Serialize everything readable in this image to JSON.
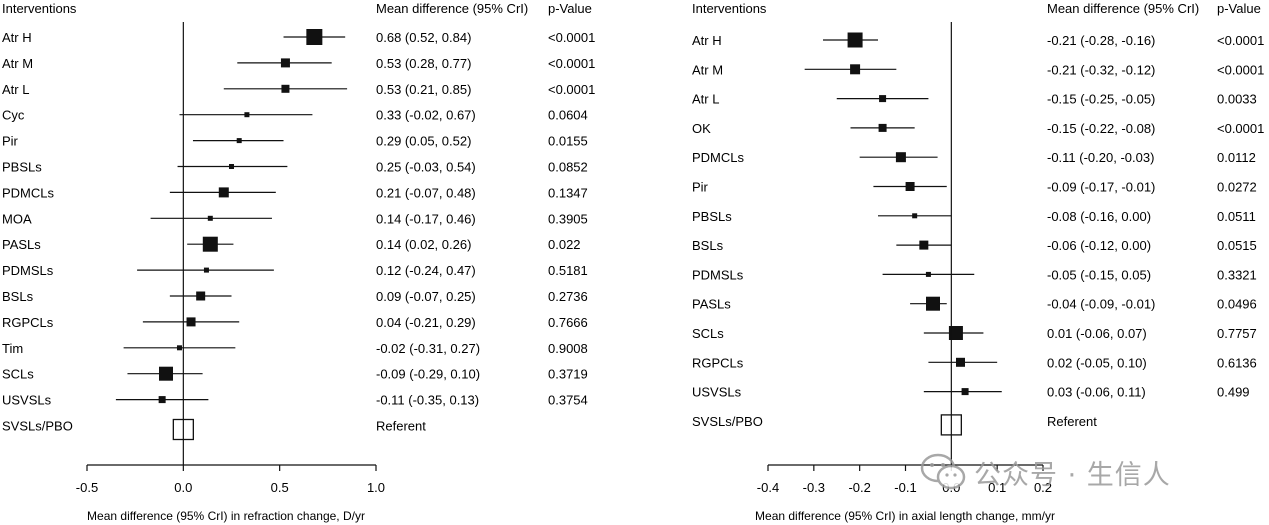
{
  "colors": {
    "marker": "#111111",
    "line": "#111111",
    "watermark": "#9a9a9a"
  },
  "chart_data": [
    {
      "type": "forest",
      "header_interventions": "Interventions",
      "header_estimate": "Mean difference (95% CrI)",
      "header_pvalue": "p-Value",
      "xlabel": "Mean difference (95% CrI) in refraction change, D/yr",
      "xlim": [
        -0.5,
        1.0
      ],
      "xticks": [
        -0.5,
        0.0,
        0.5,
        1.0
      ],
      "xtick_labels": [
        "-0.5",
        "0.0",
        "0.5",
        "1.0"
      ],
      "reference_value": 0,
      "rows": [
        {
          "label": "Atr H",
          "mean": 0.68,
          "low": 0.52,
          "high": 0.84,
          "ci_text": "0.68 (0.52, 0.84)",
          "p": "<0.0001",
          "marker_size": 16
        },
        {
          "label": "Atr M",
          "mean": 0.53,
          "low": 0.28,
          "high": 0.77,
          "ci_text": "0.53 (0.28, 0.77)",
          "p": "<0.0001",
          "marker_size": 9
        },
        {
          "label": "Atr L",
          "mean": 0.53,
          "low": 0.21,
          "high": 0.85,
          "ci_text": "0.53 (0.21, 0.85)",
          "p": "<0.0001",
          "marker_size": 8
        },
        {
          "label": "Cyc",
          "mean": 0.33,
          "low": -0.02,
          "high": 0.67,
          "ci_text": "0.33 (-0.02, 0.67)",
          "p": "0.0604",
          "marker_size": 5
        },
        {
          "label": "Pir",
          "mean": 0.29,
          "low": 0.05,
          "high": 0.52,
          "ci_text": "0.29 (0.05, 0.52)",
          "p": "0.0155",
          "marker_size": 5
        },
        {
          "label": "PBSLs",
          "mean": 0.25,
          "low": -0.03,
          "high": 0.54,
          "ci_text": "0.25 (-0.03, 0.54)",
          "p": "0.0852",
          "marker_size": 5
        },
        {
          "label": "PDMCLs",
          "mean": 0.21,
          "low": -0.07,
          "high": 0.48,
          "ci_text": "0.21 (-0.07, 0.48)",
          "p": "0.1347",
          "marker_size": 10
        },
        {
          "label": "MOA",
          "mean": 0.14,
          "low": -0.17,
          "high": 0.46,
          "ci_text": "0.14 (-0.17, 0.46)",
          "p": "0.3905",
          "marker_size": 5
        },
        {
          "label": "PASLs",
          "mean": 0.14,
          "low": 0.02,
          "high": 0.26,
          "ci_text": "0.14 (0.02, 0.26)",
          "p": "0.022",
          "marker_size": 15
        },
        {
          "label": "PDMSLs",
          "mean": 0.12,
          "low": -0.24,
          "high": 0.47,
          "ci_text": "0.12 (-0.24, 0.47)",
          "p": "0.5181",
          "marker_size": 5
        },
        {
          "label": "BSLs",
          "mean": 0.09,
          "low": -0.07,
          "high": 0.25,
          "ci_text": "0.09 (-0.07, 0.25)",
          "p": "0.2736",
          "marker_size": 9
        },
        {
          "label": "RGPCLs",
          "mean": 0.04,
          "low": -0.21,
          "high": 0.29,
          "ci_text": "0.04 (-0.21, 0.29)",
          "p": "0.7666",
          "marker_size": 9
        },
        {
          "label": "Tim",
          "mean": -0.02,
          "low": -0.31,
          "high": 0.27,
          "ci_text": "-0.02 (-0.31, 0.27)",
          "p": "0.9008",
          "marker_size": 5
        },
        {
          "label": "SCLs",
          "mean": -0.09,
          "low": -0.29,
          "high": 0.1,
          "ci_text": "-0.09 (-0.29, 0.10)",
          "p": "0.3719",
          "marker_size": 14
        },
        {
          "label": "USVSLs",
          "mean": -0.11,
          "low": -0.35,
          "high": 0.13,
          "ci_text": "-0.11 (-0.35, 0.13)",
          "p": "0.3754",
          "marker_size": 7
        },
        {
          "label": "SVSLs/PBO",
          "mean": 0.0,
          "low": null,
          "high": null,
          "ci_text": "Referent",
          "p": "",
          "marker_size": 20,
          "referent": true
        }
      ]
    },
    {
      "type": "forest",
      "header_interventions": "Interventions",
      "header_estimate": "Mean difference (95% CrI)",
      "header_pvalue": "p-Value",
      "xlabel": "Mean difference (95% CrI) in axial length change, mm/yr",
      "xlim": [
        -0.4,
        0.2
      ],
      "xticks": [
        -0.4,
        -0.3,
        -0.2,
        -0.1,
        0.0,
        0.1,
        0.2
      ],
      "xtick_labels": [
        "-0.4",
        "-0.3",
        "-0.2",
        "-0.1",
        "0.0",
        "0.1",
        "0.2"
      ],
      "reference_value": 0,
      "rows": [
        {
          "label": "Atr H",
          "mean": -0.21,
          "low": -0.28,
          "high": -0.16,
          "ci_text": "-0.21 (-0.28, -0.16)",
          "p": "<0.0001",
          "marker_size": 15
        },
        {
          "label": "Atr M",
          "mean": -0.21,
          "low": -0.32,
          "high": -0.12,
          "ci_text": "-0.21 (-0.32, -0.12)",
          "p": "<0.0001",
          "marker_size": 10
        },
        {
          "label": "Atr L",
          "mean": -0.15,
          "low": -0.25,
          "high": -0.05,
          "ci_text": "-0.15 (-0.25, -0.05)",
          "p": "0.0033",
          "marker_size": 7
        },
        {
          "label": "OK",
          "mean": -0.15,
          "low": -0.22,
          "high": -0.08,
          "ci_text": "-0.15 (-0.22, -0.08)",
          "p": "<0.0001",
          "marker_size": 8
        },
        {
          "label": "PDMCLs",
          "mean": -0.11,
          "low": -0.2,
          "high": -0.03,
          "ci_text": "-0.11 (-0.20, -0.03)",
          "p": "0.0112",
          "marker_size": 10
        },
        {
          "label": "Pir",
          "mean": -0.09,
          "low": -0.17,
          "high": -0.01,
          "ci_text": "-0.09 (-0.17, -0.01)",
          "p": "0.0272",
          "marker_size": 9
        },
        {
          "label": "PBSLs",
          "mean": -0.08,
          "low": -0.16,
          "high": 0.0,
          "ci_text": "-0.08 (-0.16, 0.00)",
          "p": "0.0511",
          "marker_size": 5
        },
        {
          "label": "BSLs",
          "mean": -0.06,
          "low": -0.12,
          "high": 0.0,
          "ci_text": "-0.06 (-0.12, 0.00)",
          "p": "0.0515",
          "marker_size": 9
        },
        {
          "label": "PDMSLs",
          "mean": -0.05,
          "low": -0.15,
          "high": 0.05,
          "ci_text": "-0.05 (-0.15, 0.05)",
          "p": "0.3321",
          "marker_size": 5
        },
        {
          "label": "PASLs",
          "mean": -0.04,
          "low": -0.09,
          "high": -0.01,
          "ci_text": "-0.04 (-0.09, -0.01)",
          "p": "0.0496",
          "marker_size": 14
        },
        {
          "label": "SCLs",
          "mean": 0.01,
          "low": -0.06,
          "high": 0.07,
          "ci_text": "0.01 (-0.06, 0.07)",
          "p": "0.7757",
          "marker_size": 14
        },
        {
          "label": "RGPCLs",
          "mean": 0.02,
          "low": -0.05,
          "high": 0.1,
          "ci_text": "0.02 (-0.05, 0.10)",
          "p": "0.6136",
          "marker_size": 9
        },
        {
          "label": "USVSLs",
          "mean": 0.03,
          "low": -0.06,
          "high": 0.11,
          "ci_text": "0.03 (-0.06, 0.11)",
          "p": "0.499",
          "marker_size": 7
        },
        {
          "label": "SVSLs/PBO",
          "mean": 0.0,
          "low": null,
          "high": null,
          "ci_text": "Referent",
          "p": "",
          "marker_size": 20,
          "referent": true
        }
      ]
    }
  ],
  "watermark": {
    "text": "公众号 · 生信人",
    "icon": "wechat-icon"
  }
}
